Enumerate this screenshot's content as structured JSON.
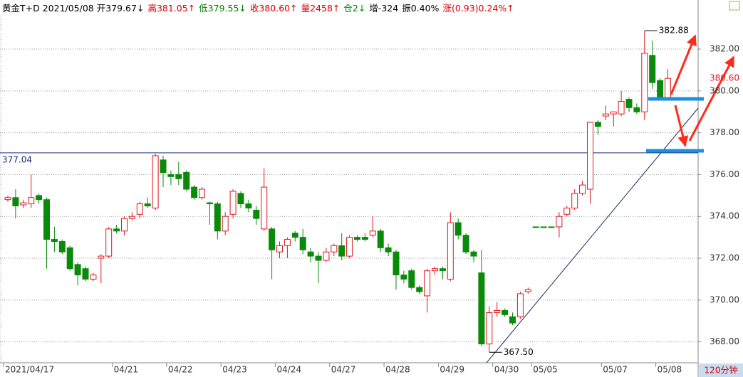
{
  "chart_data": {
    "type": "candlestick",
    "header": [
      {
        "text": "黄金T+D 2021/05/08 开379.67↓",
        "color": "#000000"
      },
      {
        "text": "高381.05↑",
        "color": "#d40000"
      },
      {
        "text": "低379.55↓",
        "color": "#008000"
      },
      {
        "text": "收380.60↑",
        "color": "#d40000"
      },
      {
        "text": "量2458↑",
        "color": "#d40000"
      },
      {
        "text": "仓2↓",
        "color": "#008000"
      },
      {
        "text": "增-324",
        "color": "#000000"
      },
      {
        "text": "振0.40%",
        "color": "#000000"
      },
      {
        "text": "涨(0.93)0.24%↑",
        "color": "#d40000"
      }
    ],
    "period": "120分钟",
    "categories": [
      "2021/04/17",
      null,
      null,
      null,
      null,
      null,
      null,
      null,
      null,
      null,
      null,
      null,
      null,
      null,
      "04/21",
      null,
      null,
      null,
      null,
      null,
      null,
      "04/22",
      null,
      null,
      null,
      null,
      null,
      null,
      "04/23",
      null,
      null,
      null,
      null,
      null,
      null,
      "04/24",
      null,
      null,
      null,
      null,
      null,
      null,
      "04/27",
      null,
      null,
      null,
      null,
      null,
      null,
      "04/28",
      null,
      null,
      null,
      null,
      null,
      null,
      "04/29",
      null,
      null,
      null,
      null,
      null,
      null,
      "04/30",
      null,
      null,
      null,
      null,
      "05/05",
      null,
      null,
      null,
      null,
      null,
      null,
      null,
      null,
      "05/07",
      null,
      null,
      null,
      null,
      null,
      null,
      "05/08",
      null
    ],
    "open": [
      374.8,
      374.9,
      374.55,
      374.6,
      375.0,
      374.8,
      372.9,
      372.8,
      372.5,
      371.7,
      371.5,
      371.0,
      372.0,
      372.1,
      373.4,
      373.3,
      373.9,
      374.1,
      374.6,
      374.4,
      376.7,
      376.0,
      376.0,
      376.1,
      375.4,
      374.9,
      374.65,
      374.6,
      373.3,
      374.1,
      375.1,
      374.6,
      374.3,
      373.4,
      373.4,
      372.3,
      372.6,
      373.2,
      373.0,
      372.3,
      372.1,
      371.9,
      372.3,
      372.6,
      372.1,
      373.0,
      373.0,
      373.1,
      373.3,
      372.5,
      372.3,
      371.2,
      371.4,
      370.6,
      370.2,
      371.4,
      371.5,
      371.0,
      373.7,
      373.1,
      372.3,
      371.3,
      367.9,
      369.4,
      369.5,
      369.2,
      369.2,
      370.4,
      373.5,
      373.5,
      373.5,
      373.5,
      374.1,
      374.4,
      375.1,
      375.3,
      378.5,
      378.8,
      378.9,
      378.9,
      379.6,
      379.2,
      379.0,
      381.7,
      380.5,
      379.67
    ],
    "high": [
      375.0,
      375.3,
      374.8,
      376.0,
      375.1,
      374.9,
      373.5,
      372.9,
      372.6,
      371.8,
      371.6,
      371.3,
      372.2,
      373.5,
      373.6,
      374.0,
      374.2,
      374.7,
      374.9,
      377.0,
      376.9,
      376.2,
      376.6,
      376.2,
      375.5,
      375.4,
      374.7,
      374.7,
      374.2,
      375.3,
      375.2,
      374.8,
      374.5,
      376.3,
      373.5,
      372.8,
      373.0,
      373.3,
      373.4,
      372.5,
      372.3,
      372.5,
      372.7,
      373.2,
      373.1,
      373.1,
      373.2,
      374.0,
      373.4,
      372.7,
      372.4,
      371.4,
      371.5,
      370.7,
      371.5,
      371.6,
      371.6,
      374.2,
      373.9,
      373.2,
      372.4,
      372.4,
      369.7,
      369.9,
      369.6,
      369.4,
      370.4,
      370.6,
      373.5,
      373.5,
      373.5,
      374.2,
      374.5,
      375.3,
      375.7,
      378.5,
      378.6,
      379.3,
      379.0,
      380.0,
      379.7,
      379.4,
      382.88,
      382.4,
      380.6,
      381.05
    ],
    "low": [
      374.7,
      373.9,
      374.4,
      374.4,
      374.6,
      371.5,
      372.3,
      372.2,
      371.4,
      370.7,
      370.9,
      370.9,
      370.8,
      372.0,
      373.2,
      373.1,
      373.8,
      373.9,
      374.4,
      374.3,
      375.4,
      375.5,
      375.5,
      375.2,
      374.8,
      374.8,
      373.6,
      372.9,
      373.1,
      373.9,
      374.4,
      374.2,
      373.6,
      373.3,
      371.0,
      372.0,
      372.0,
      372.8,
      372.2,
      371.8,
      370.8,
      371.8,
      372.1,
      371.9,
      372.0,
      372.8,
      372.8,
      373.0,
      372.3,
      372.1,
      370.5,
      370.8,
      370.5,
      370.3,
      369.4,
      371.2,
      371.0,
      370.9,
      372.9,
      372.2,
      371.8,
      367.8,
      367.5,
      369.2,
      369.2,
      368.8,
      369.1,
      370.3,
      373.5,
      373.5,
      373.5,
      373.0,
      374.0,
      374.3,
      375.0,
      374.6,
      377.9,
      378.6,
      378.3,
      378.8,
      379.0,
      378.9,
      378.6,
      380.1,
      379.6,
      379.55
    ],
    "close": [
      374.9,
      374.5,
      374.65,
      374.9,
      374.8,
      372.9,
      372.8,
      372.3,
      371.5,
      371.2,
      371.0,
      371.2,
      372.1,
      373.4,
      373.3,
      373.9,
      374.0,
      374.6,
      374.5,
      376.9,
      376.1,
      375.9,
      375.8,
      375.3,
      374.9,
      375.3,
      374.6,
      373.3,
      374.0,
      375.2,
      374.6,
      374.4,
      373.9,
      375.4,
      372.4,
      372.6,
      372.9,
      373.0,
      372.4,
      372.1,
      371.9,
      372.3,
      372.6,
      372.1,
      373.0,
      372.9,
      372.9,
      373.3,
      372.5,
      372.3,
      371.2,
      371.0,
      370.6,
      370.4,
      371.4,
      371.5,
      371.4,
      373.7,
      373.1,
      372.3,
      372.1,
      367.9,
      369.4,
      369.5,
      369.3,
      368.9,
      370.3,
      370.5,
      373.5,
      373.5,
      373.5,
      374.0,
      374.4,
      375.1,
      375.5,
      378.5,
      378.3,
      378.9,
      379.0,
      379.5,
      379.2,
      379.0,
      381.8,
      380.4,
      379.7,
      380.6
    ],
    "up_color": "#e0181e",
    "down_color": "#0a8a0a",
    "max_label": 382.88,
    "min_label": {
      "value": 367.5,
      "label": "367.50"
    },
    "hline": 377.04,
    "last_price": {
      "value": 380.6,
      "label": "380.60"
    },
    "ylim": [
      367.0,
      383.6
    ],
    "yticks": [
      {
        "value": 368,
        "label": "368.00"
      },
      {
        "value": 370,
        "label": "370.00"
      },
      {
        "value": 372,
        "label": "372.00"
      },
      {
        "value": 374,
        "label": "374.00"
      },
      {
        "value": 376,
        "label": "376.00"
      },
      {
        "value": 378,
        "label": "378.00"
      },
      {
        "value": 380,
        "label": "380.00"
      },
      {
        "value": 382,
        "label": "382.00"
      }
    ],
    "grid": true
  }
}
